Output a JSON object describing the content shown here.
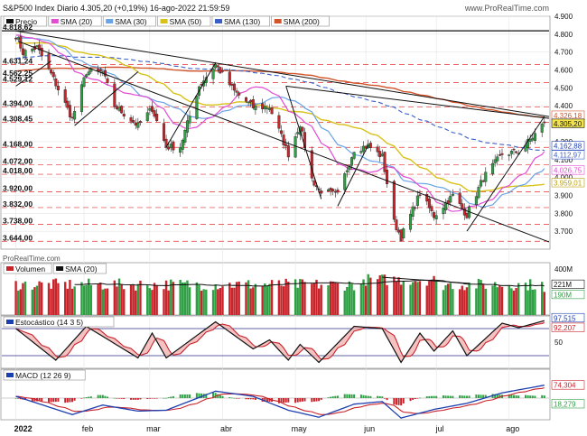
{
  "header": {
    "title": "S&P500 Index Diario 4.305,20 (+0,19%) 16-ago-2022 21:59:59",
    "watermark": "www.ProRealTime.com",
    "source": "ProRealTime.com"
  },
  "colors": {
    "up": "#2ea043",
    "down": "#c8242b",
    "sma20": "#e24bd4",
    "sma30": "#6aa3e6",
    "sma50": "#d8c21a",
    "sma130": "#3a5fc8",
    "sma200": "#d2542a",
    "dashed": "#e03030",
    "trend": "#111111",
    "bg": "#ffffff",
    "grid": "#e4e4e4"
  },
  "price_panel": {
    "legend": [
      {
        "label": "Precio",
        "color": "#111111"
      },
      {
        "label": "SMA (20)",
        "color": "#e24bd4"
      },
      {
        "label": "SMA (30)",
        "color": "#6aa3e6"
      },
      {
        "label": "SMA (50)",
        "color": "#d8c21a"
      },
      {
        "label": "SMA (130)",
        "color": "#3a5fc8"
      },
      {
        "label": "SMA (200)",
        "color": "#d2542a"
      }
    ],
    "yaxis_ticks": [
      "4.900",
      "4.800",
      "4.700",
      "4.600",
      "4.500",
      "4.400",
      "4.300",
      "4.200",
      "4.100",
      "4.000",
      "3.900",
      "3.800",
      "3.700"
    ],
    "left_levels": [
      "4.818,62",
      "4.631,24",
      "4.562,25",
      "4.529,12",
      "4.394,00",
      "4.308,45",
      "4.168,00",
      "4.072,00",
      "4.018,00",
      "3.920,00",
      "3.832,00",
      "3.738,00",
      "3.644,00"
    ],
    "right_tags": [
      {
        "text": "4.326,18",
        "color": "#d2542a",
        "fill": "#ffffff"
      },
      {
        "text": "4.305,20",
        "color": "#111111",
        "fill": "#f2e24c"
      },
      {
        "text": "4.162,88",
        "color": "#1c3fb0",
        "fill": "#ffffff"
      },
      {
        "text": "4.112,97",
        "color": "#3a5fc8",
        "fill": "#ffffff"
      },
      {
        "text": "4.026,75",
        "color": "#e24bd4",
        "fill": "#ffffff"
      },
      {
        "text": "3.959,01",
        "color": "#b8a010",
        "fill": "#ffffff"
      }
    ]
  },
  "volume_panel": {
    "legend": [
      {
        "label": "Volumen",
        "color": "#c8242b"
      },
      {
        "label": "SMA (20)",
        "color": "#111111"
      }
    ],
    "yaxis_ticks": [
      "400M"
    ],
    "right_tags": [
      {
        "text": "221M",
        "color": "#111111",
        "fill": "#ffffff"
      },
      {
        "text": "190M",
        "color": "#2ea043",
        "fill": "#ffffff"
      }
    ]
  },
  "stoch_panel": {
    "legend": [
      {
        "label": "Estocástico (14 3 5)",
        "color": "#1c3fb0"
      }
    ],
    "yaxis_ticks": [
      "50"
    ],
    "right_tags": [
      {
        "text": "97,515",
        "color": "#1c3fb0",
        "fill": "#ffffff"
      },
      {
        "text": "92,207",
        "color": "#c8242b",
        "fill": "#ffffff"
      }
    ]
  },
  "macd_panel": {
    "legend": [
      {
        "label": "MACD (12 26 9)",
        "color": "#1c3fb0"
      }
    ],
    "right_tags": [
      {
        "text": "74,304",
        "color": "#c8242b",
        "fill": "#ffffff"
      },
      {
        "text": "18,279",
        "color": "#2ea043",
        "fill": "#ffffff"
      }
    ]
  },
  "xaxis": {
    "labels": [
      "2022",
      "feb",
      "mar",
      "abr",
      "may",
      "jun",
      "jul",
      "ago"
    ]
  },
  "chart_data": [
    {
      "type": "candlestick",
      "title": "S&P500 Index Diario",
      "ylim": [
        3600,
        4900
      ],
      "close_points": [
        {
          "date": "2022-01-03",
          "close": 4796
        },
        {
          "date": "2022-01-06",
          "close": 4697
        },
        {
          "date": "2022-01-12",
          "close": 4726
        },
        {
          "date": "2022-01-18",
          "close": 4577
        },
        {
          "date": "2022-01-24",
          "close": 4410
        },
        {
          "date": "2022-01-27",
          "close": 4327
        },
        {
          "date": "2022-02-02",
          "close": 4589
        },
        {
          "date": "2022-02-09",
          "close": 4587
        },
        {
          "date": "2022-02-14",
          "close": 4401
        },
        {
          "date": "2022-02-24",
          "close": 4288
        },
        {
          "date": "2022-03-02",
          "close": 4386
        },
        {
          "date": "2022-03-08",
          "close": 4170
        },
        {
          "date": "2022-03-14",
          "close": 4173
        },
        {
          "date": "2022-03-22",
          "close": 4511
        },
        {
          "date": "2022-03-29",
          "close": 4631
        },
        {
          "date": "2022-04-06",
          "close": 4481
        },
        {
          "date": "2022-04-14",
          "close": 4392
        },
        {
          "date": "2022-04-21",
          "close": 4393
        },
        {
          "date": "2022-04-29",
          "close": 4131
        },
        {
          "date": "2022-05-04",
          "close": 4300
        },
        {
          "date": "2022-05-09",
          "close": 3991
        },
        {
          "date": "2022-05-12",
          "close": 3930
        },
        {
          "date": "2022-05-20",
          "close": 3901
        },
        {
          "date": "2022-05-27",
          "close": 4158
        },
        {
          "date": "2022-06-02",
          "close": 4176
        },
        {
          "date": "2022-06-08",
          "close": 4115
        },
        {
          "date": "2022-06-13",
          "close": 3750
        },
        {
          "date": "2022-06-16",
          "close": 3667
        },
        {
          "date": "2022-06-24",
          "close": 3912
        },
        {
          "date": "2022-06-30",
          "close": 3785
        },
        {
          "date": "2022-07-08",
          "close": 3899
        },
        {
          "date": "2022-07-14",
          "close": 3790
        },
        {
          "date": "2022-07-21",
          "close": 3998
        },
        {
          "date": "2022-07-29",
          "close": 4130
        },
        {
          "date": "2022-08-05",
          "close": 4145
        },
        {
          "date": "2022-08-10",
          "close": 4210
        },
        {
          "date": "2022-08-16",
          "close": 4305
        }
      ],
      "last_close": 4305.2,
      "change_pct": 0.19,
      "sma_last": {
        "sma20": 4026.75,
        "sma50": 3959.01,
        "sma130": 4112.97,
        "sma200": 4326.18
      },
      "dashed_levels": [
        4818.62,
        4631.24,
        4529.12,
        4394.0,
        4308.45,
        4168.0,
        4072.0,
        4018.0,
        3920.0,
        3832.0,
        3738.0,
        3644.0
      ],
      "resistance_level": 4818.62
    },
    {
      "type": "bar",
      "title": "Volumen",
      "ylim": [
        0,
        400
      ],
      "unit": "M",
      "last_volume": 190,
      "last_sma20": 221
    },
    {
      "type": "line",
      "title": "Estocástico (14 3 5)",
      "ylim": [
        0,
        100
      ],
      "k_points": [
        {
          "date": "2022-01-03",
          "value": 80
        },
        {
          "date": "2022-01-20",
          "value": 10
        },
        {
          "date": "2022-02-02",
          "value": 85
        },
        {
          "date": "2022-02-24",
          "value": 15
        },
        {
          "date": "2022-03-02",
          "value": 70
        },
        {
          "date": "2022-03-08",
          "value": 15
        },
        {
          "date": "2022-03-29",
          "value": 95
        },
        {
          "date": "2022-04-14",
          "value": 35
        },
        {
          "date": "2022-04-21",
          "value": 55
        },
        {
          "date": "2022-04-29",
          "value": 10
        },
        {
          "date": "2022-05-04",
          "value": 45
        },
        {
          "date": "2022-05-12",
          "value": 5
        },
        {
          "date": "2022-05-27",
          "value": 85
        },
        {
          "date": "2022-06-08",
          "value": 80
        },
        {
          "date": "2022-06-16",
          "value": 5
        },
        {
          "date": "2022-06-24",
          "value": 70
        },
        {
          "date": "2022-06-30",
          "value": 30
        },
        {
          "date": "2022-07-08",
          "value": 75
        },
        {
          "date": "2022-07-14",
          "value": 20
        },
        {
          "date": "2022-07-29",
          "value": 92
        },
        {
          "date": "2022-08-05",
          "value": 82
        },
        {
          "date": "2022-08-16",
          "value": 97.515
        }
      ],
      "last_k": 97.515,
      "last_d": 92.207
    },
    {
      "type": "line",
      "title": "MACD (12 26 9)",
      "macd_points": [
        {
          "date": "2022-01-03",
          "value": 10
        },
        {
          "date": "2022-01-27",
          "value": -95
        },
        {
          "date": "2022-02-09",
          "value": -40
        },
        {
          "date": "2022-02-24",
          "value": -75
        },
        {
          "date": "2022-03-08",
          "value": -70
        },
        {
          "date": "2022-03-29",
          "value": 40
        },
        {
          "date": "2022-04-14",
          "value": 10
        },
        {
          "date": "2022-04-29",
          "value": -70
        },
        {
          "date": "2022-05-12",
          "value": -110
        },
        {
          "date": "2022-05-27",
          "value": -35
        },
        {
          "date": "2022-06-08",
          "value": -20
        },
        {
          "date": "2022-06-16",
          "value": -115
        },
        {
          "date": "2022-06-30",
          "value": -65
        },
        {
          "date": "2022-07-14",
          "value": -30
        },
        {
          "date": "2022-07-29",
          "value": 30
        },
        {
          "date": "2022-08-16",
          "value": 74.304
        }
      ],
      "last_macd": 74.304,
      "last_hist": 18.279
    }
  ]
}
